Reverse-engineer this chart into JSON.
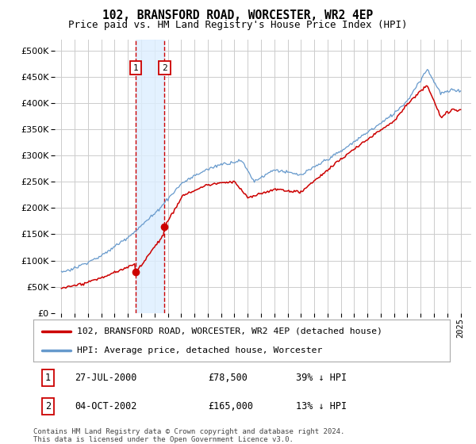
{
  "title": "102, BRANSFORD ROAD, WORCESTER, WR2 4EP",
  "subtitle": "Price paid vs. HM Land Registry's House Price Index (HPI)",
  "hpi_label": "HPI: Average price, detached house, Worcester",
  "price_label": "102, BRANSFORD ROAD, WORCESTER, WR2 4EP (detached house)",
  "footer": "Contains HM Land Registry data © Crown copyright and database right 2024.\nThis data is licensed under the Open Government Licence v3.0.",
  "transaction1": {
    "label": "1",
    "date": "27-JUL-2000",
    "price": "£78,500",
    "hpi_diff": "39% ↓ HPI"
  },
  "transaction2": {
    "label": "2",
    "date": "04-OCT-2002",
    "price": "£165,000",
    "hpi_diff": "13% ↓ HPI"
  },
  "ylim": [
    0,
    520000
  ],
  "yticks": [
    0,
    50000,
    100000,
    150000,
    200000,
    250000,
    300000,
    350000,
    400000,
    450000,
    500000
  ],
  "hpi_color": "#6699cc",
  "price_color": "#cc0000",
  "marker1_x": 2000.58,
  "marker1_y": 78500,
  "marker2_x": 2002.75,
  "marker2_y": 165000,
  "vline1_x": 2000.58,
  "vline2_x": 2002.75,
  "shade_color": "#ddeeff",
  "background_color": "#ffffff",
  "grid_color": "#cccccc",
  "xlim_left": 1994.5,
  "xlim_right": 2025.8
}
